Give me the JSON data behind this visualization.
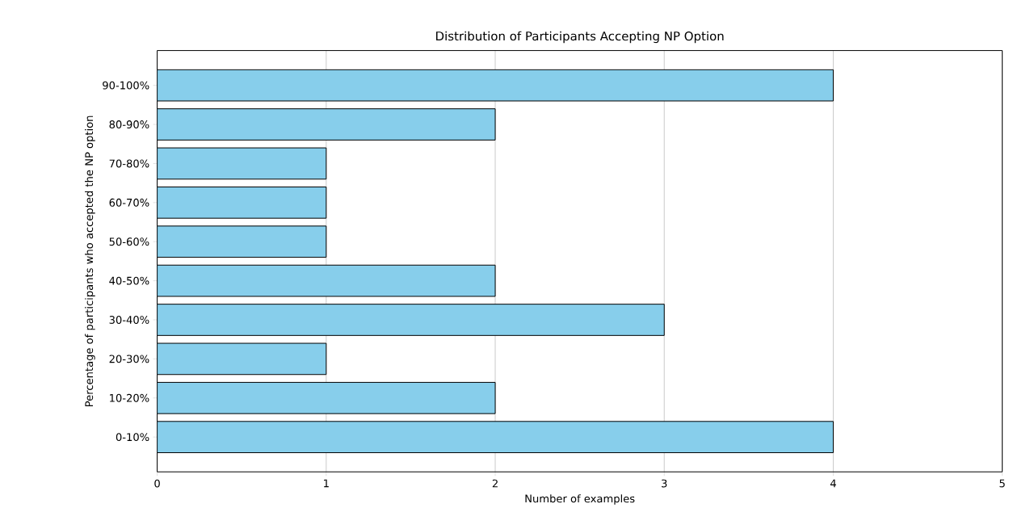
{
  "chart_data": {
    "type": "bar",
    "orientation": "horizontal",
    "title": "Distribution of Participants Accepting NP Option",
    "xlabel": "Number of examples",
    "ylabel": "Percentage of participants who accepted the NP option",
    "categories": [
      "90-100%",
      "80-90%",
      "70-80%",
      "60-70%",
      "50-60%",
      "40-50%",
      "30-40%",
      "20-30%",
      "10-20%",
      "0-10%"
    ],
    "values": [
      4,
      2,
      1,
      1,
      1,
      2,
      3,
      1,
      2,
      4
    ],
    "color": "#87ceeb",
    "xlim": [
      0,
      5
    ],
    "xticks": [
      0,
      1,
      2,
      3,
      4,
      5
    ],
    "grid": "x"
  }
}
